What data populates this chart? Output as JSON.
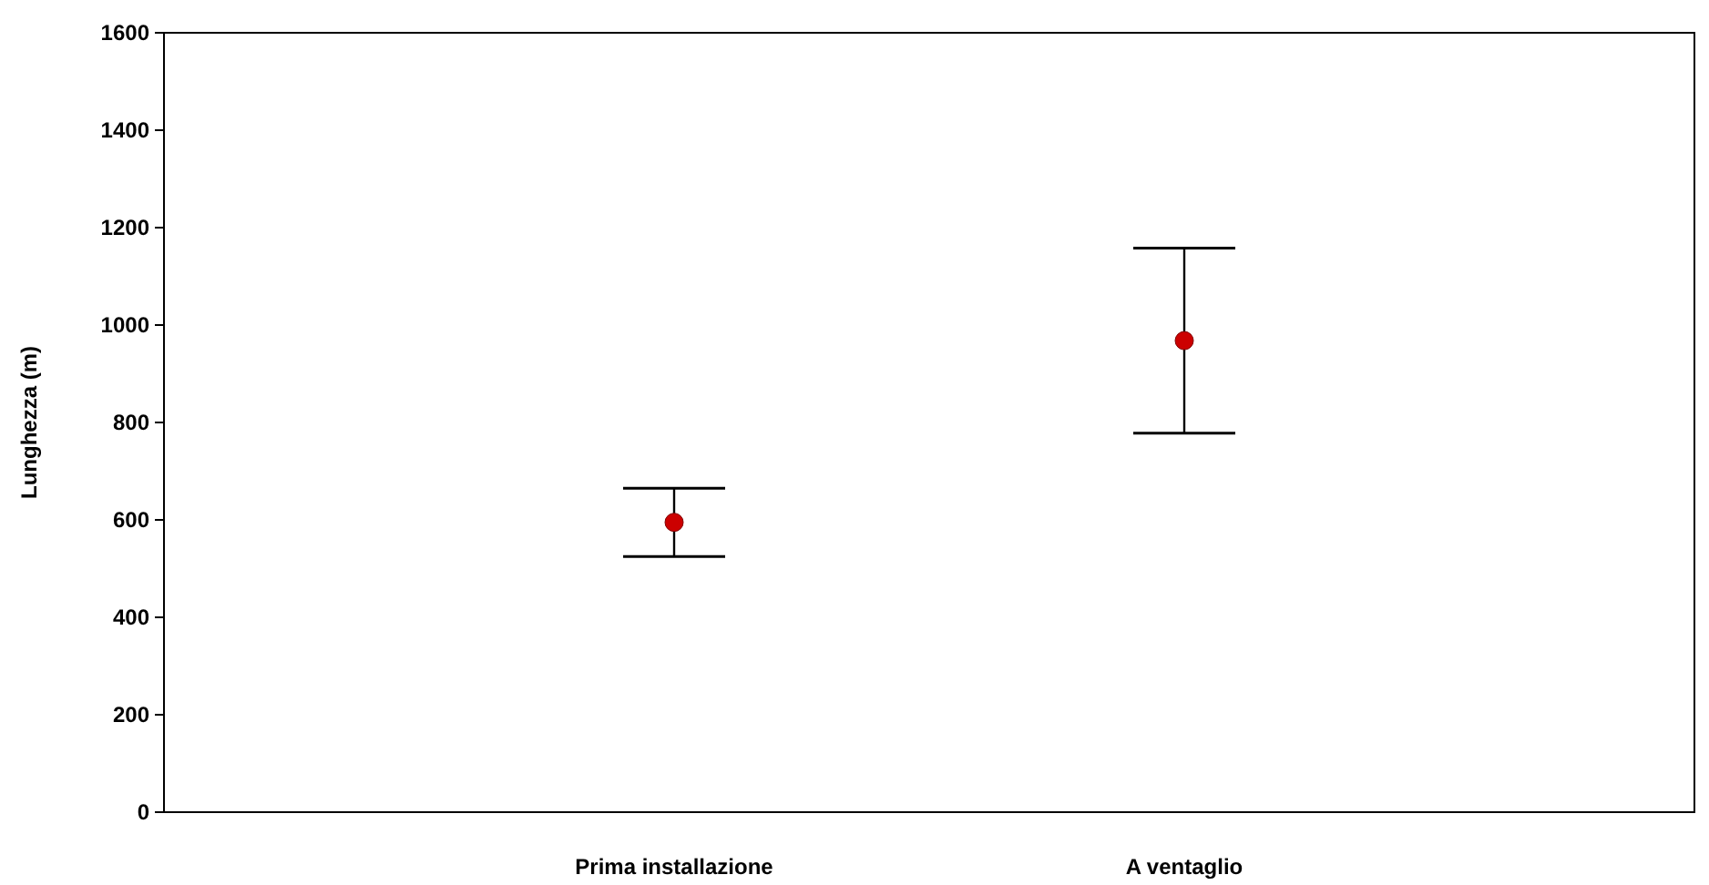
{
  "chart_data": {
    "type": "scatter",
    "ylabel": "Lunghezza (m)",
    "categories": [
      "Prima installazione",
      "A ventaglio"
    ],
    "color": "#cc0000",
    "values": [
      595,
      968
    ],
    "errors": [
      70,
      190
    ],
    "ylim": [
      0,
      1600
    ],
    "yticks": [
      0,
      200,
      400,
      600,
      800,
      1000,
      1200,
      1400,
      1600
    ],
    "grid": false,
    "marker": "circle"
  }
}
